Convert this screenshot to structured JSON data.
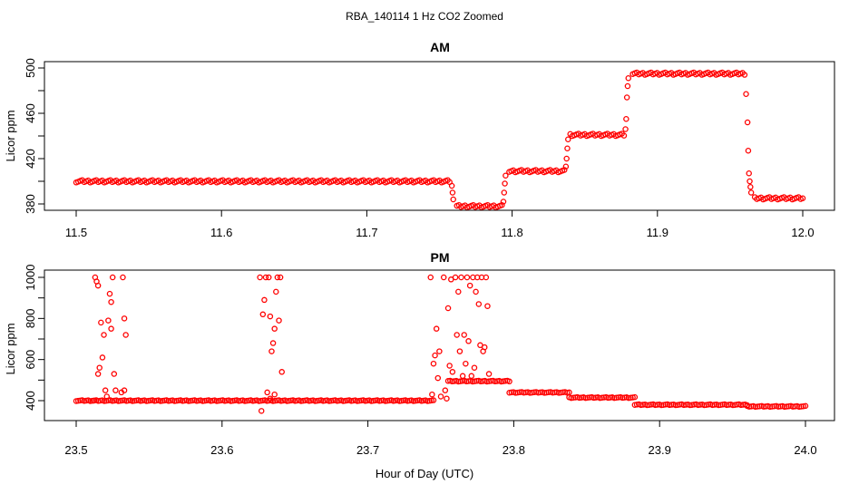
{
  "figure_title": "RBA_140114  1 Hz CO2 Zoomed",
  "shared_xlabel": "Hour of Day (UTC)",
  "colors": {
    "points": "#ff0000",
    "axes": "#000000",
    "background": "#ffffff"
  },
  "chart_data": [
    {
      "type": "scatter",
      "title": "AM",
      "xlabel": "",
      "ylabel": "Licor ppm",
      "xlim": [
        11.5,
        12.0
      ],
      "ylim": [
        375,
        505
      ],
      "x_ticks": [
        "11.5",
        "11.6",
        "11.7",
        "11.8",
        "11.9",
        "12.0"
      ],
      "y_ticks": [
        "380",
        "420",
        "460",
        "500"
      ],
      "marker": "open-circle",
      "grid": false,
      "segments": [
        {
          "x": [
            11.5,
            11.757
          ],
          "y": 400
        },
        {
          "x": [
            11.762,
            11.793
          ],
          "y": 378
        },
        {
          "x": [
            11.798,
            11.836
          ],
          "y": 409
        },
        {
          "x": [
            11.84,
            11.877
          ],
          "y": 441
        },
        {
          "x": [
            11.883,
            11.96
          ],
          "y": 495
        },
        {
          "x": [
            11.967,
            12.0
          ],
          "y": 385
        }
      ],
      "transition_points": [
        {
          "x": 11.7585,
          "y": 396
        },
        {
          "x": 11.759,
          "y": 390
        },
        {
          "x": 11.7595,
          "y": 384
        },
        {
          "x": 11.794,
          "y": 382
        },
        {
          "x": 11.7945,
          "y": 390
        },
        {
          "x": 11.795,
          "y": 398
        },
        {
          "x": 11.7955,
          "y": 405
        },
        {
          "x": 11.837,
          "y": 413
        },
        {
          "x": 11.8375,
          "y": 420
        },
        {
          "x": 11.838,
          "y": 429
        },
        {
          "x": 11.8385,
          "y": 437
        },
        {
          "x": 11.878,
          "y": 446
        },
        {
          "x": 11.8785,
          "y": 455
        },
        {
          "x": 11.879,
          "y": 474
        },
        {
          "x": 11.8795,
          "y": 484
        },
        {
          "x": 11.88,
          "y": 491
        },
        {
          "x": 11.961,
          "y": 477
        },
        {
          "x": 11.962,
          "y": 452
        },
        {
          "x": 11.9625,
          "y": 427
        },
        {
          "x": 11.963,
          "y": 407
        },
        {
          "x": 11.9635,
          "y": 400
        },
        {
          "x": 11.964,
          "y": 395
        },
        {
          "x": 11.9645,
          "y": 390
        }
      ]
    },
    {
      "type": "scatter",
      "title": "PM",
      "xlabel": "",
      "ylabel": "Licor ppm",
      "xlim": [
        23.5,
        24.0
      ],
      "ylim": [
        330,
        1020
      ],
      "x_ticks": [
        "23.5",
        "23.6",
        "23.7",
        "23.8",
        "23.9",
        "24.0"
      ],
      "y_ticks": [
        "400",
        "600",
        "800",
        "1000"
      ],
      "marker": "open-circle",
      "grid": false,
      "segments": [
        {
          "x": [
            23.5,
            23.745
          ],
          "y": 400
        },
        {
          "x": [
            23.755,
            23.797
          ],
          "y": 495
        },
        {
          "x": [
            23.797,
            23.838
          ],
          "y": 440
        },
        {
          "x": [
            23.838,
            23.883
          ],
          "y": 415
        },
        {
          "x": [
            23.883,
            23.96
          ],
          "y": 380
        },
        {
          "x": [
            23.96,
            24.0
          ],
          "y": 372
        }
      ],
      "spike_points": [
        {
          "x": 23.513,
          "y": 1000
        },
        {
          "x": 23.514,
          "y": 980
        },
        {
          "x": 23.515,
          "y": 960
        },
        {
          "x": 23.515,
          "y": 530
        },
        {
          "x": 23.516,
          "y": 560
        },
        {
          "x": 23.517,
          "y": 780
        },
        {
          "x": 23.518,
          "y": 610
        },
        {
          "x": 23.519,
          "y": 720
        },
        {
          "x": 23.52,
          "y": 450
        },
        {
          "x": 23.521,
          "y": 420
        },
        {
          "x": 23.522,
          "y": 790
        },
        {
          "x": 23.523,
          "y": 920
        },
        {
          "x": 23.524,
          "y": 880
        },
        {
          "x": 23.525,
          "y": 1000
        },
        {
          "x": 23.526,
          "y": 530
        },
        {
          "x": 23.527,
          "y": 450
        },
        {
          "x": 23.524,
          "y": 750
        },
        {
          "x": 23.512,
          "y": 400
        },
        {
          "x": 23.532,
          "y": 1000
        },
        {
          "x": 23.533,
          "y": 800
        },
        {
          "x": 23.534,
          "y": 720
        },
        {
          "x": 23.533,
          "y": 450
        },
        {
          "x": 23.531,
          "y": 440
        },
        {
          "x": 23.626,
          "y": 1000
        },
        {
          "x": 23.627,
          "y": 350
        },
        {
          "x": 23.628,
          "y": 820
        },
        {
          "x": 23.629,
          "y": 890
        },
        {
          "x": 23.63,
          "y": 1000
        },
        {
          "x": 23.632,
          "y": 1000
        },
        {
          "x": 23.633,
          "y": 810
        },
        {
          "x": 23.634,
          "y": 640
        },
        {
          "x": 23.635,
          "y": 680
        },
        {
          "x": 23.636,
          "y": 750
        },
        {
          "x": 23.637,
          "y": 930
        },
        {
          "x": 23.638,
          "y": 1000
        },
        {
          "x": 23.639,
          "y": 790
        },
        {
          "x": 23.64,
          "y": 1000
        },
        {
          "x": 23.641,
          "y": 540
        },
        {
          "x": 23.631,
          "y": 440
        },
        {
          "x": 23.633,
          "y": 410
        },
        {
          "x": 23.636,
          "y": 430
        },
        {
          "x": 23.743,
          "y": 1000
        },
        {
          "x": 23.744,
          "y": 430
        },
        {
          "x": 23.745,
          "y": 580
        },
        {
          "x": 23.746,
          "y": 620
        },
        {
          "x": 23.747,
          "y": 750
        },
        {
          "x": 23.748,
          "y": 510
        },
        {
          "x": 23.749,
          "y": 640
        },
        {
          "x": 23.75,
          "y": 420
        },
        {
          "x": 23.752,
          "y": 1000
        },
        {
          "x": 23.753,
          "y": 450
        },
        {
          "x": 23.754,
          "y": 410
        },
        {
          "x": 23.755,
          "y": 850
        },
        {
          "x": 23.756,
          "y": 570
        },
        {
          "x": 23.757,
          "y": 990
        },
        {
          "x": 23.758,
          "y": 540
        },
        {
          "x": 23.76,
          "y": 1000
        },
        {
          "x": 23.761,
          "y": 720
        },
        {
          "x": 23.762,
          "y": 930
        },
        {
          "x": 23.763,
          "y": 640
        },
        {
          "x": 23.764,
          "y": 1000
        },
        {
          "x": 23.765,
          "y": 520
        },
        {
          "x": 23.766,
          "y": 720
        },
        {
          "x": 23.767,
          "y": 580
        },
        {
          "x": 23.768,
          "y": 1000
        },
        {
          "x": 23.769,
          "y": 690
        },
        {
          "x": 23.77,
          "y": 960
        },
        {
          "x": 23.771,
          "y": 520
        },
        {
          "x": 23.772,
          "y": 1000
        },
        {
          "x": 23.773,
          "y": 560
        },
        {
          "x": 23.774,
          "y": 930
        },
        {
          "x": 23.775,
          "y": 1000
        },
        {
          "x": 23.776,
          "y": 870
        },
        {
          "x": 23.777,
          "y": 670
        },
        {
          "x": 23.778,
          "y": 1000
        },
        {
          "x": 23.779,
          "y": 640
        },
        {
          "x": 23.78,
          "y": 660
        },
        {
          "x": 23.781,
          "y": 1000
        },
        {
          "x": 23.782,
          "y": 860
        },
        {
          "x": 23.783,
          "y": 530
        }
      ]
    }
  ]
}
